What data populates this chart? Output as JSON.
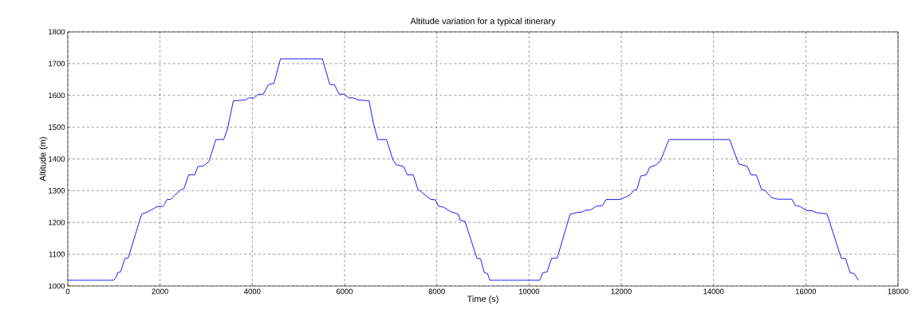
{
  "chart_data": {
    "type": "line",
    "title": "Altitude variation for a typical itinerary",
    "xlabel": "Time (s)",
    "ylabel": "Altitude (m)",
    "xlim": [
      0,
      18000
    ],
    "ylim": [
      1000,
      1800
    ],
    "xticks": [
      0,
      2000,
      4000,
      6000,
      8000,
      10000,
      12000,
      14000,
      16000,
      18000
    ],
    "yticks": [
      1000,
      1100,
      1200,
      1300,
      1400,
      1500,
      1600,
      1700,
      1800
    ],
    "grid": true,
    "marker": "none",
    "line_style": "solid",
    "series": [
      {
        "color": "#0000ff",
        "x": [
          0,
          990,
          1050,
          1080,
          1140,
          1240,
          1310,
          1600,
          1730,
          1940,
          2050,
          2100,
          2150,
          2230,
          2330,
          2440,
          2520,
          2620,
          2750,
          2820,
          2940,
          3060,
          3210,
          3380,
          3460,
          3590,
          3720,
          3860,
          3920,
          4040,
          4120,
          4240,
          4350,
          4470,
          4610,
          5520,
          5680,
          5780,
          5880,
          5990,
          6090,
          6200,
          6280,
          6530,
          6630,
          6720,
          6910,
          7050,
          7120,
          7280,
          7360,
          7490,
          7590,
          7670,
          7860,
          7970,
          8040,
          8150,
          8300,
          8470,
          8510,
          8610,
          8870,
          8950,
          9030,
          9100,
          9150,
          10230,
          10300,
          10390,
          10490,
          10610,
          10890,
          11040,
          11150,
          11240,
          11330,
          11460,
          11590,
          11670,
          11960,
          12080,
          12190,
          12280,
          12340,
          12420,
          12540,
          12620,
          12740,
          12850,
          13030,
          14350,
          14470,
          14550,
          14730,
          14810,
          14930,
          15040,
          15120,
          15250,
          15390,
          15700,
          15770,
          15880,
          16020,
          16140,
          16230,
          16460,
          16770,
          16860,
          16960,
          17050,
          17140
        ],
        "values": [
          1018,
          1018,
          1027,
          1042,
          1044,
          1087,
          1088,
          1226,
          1233,
          1250,
          1250,
          1258,
          1272,
          1272,
          1287,
          1302,
          1307,
          1350,
          1350,
          1376,
          1378,
          1392,
          1461,
          1461,
          1493,
          1583,
          1584,
          1586,
          1592,
          1592,
          1603,
          1604,
          1634,
          1638,
          1715,
          1715,
          1634,
          1634,
          1604,
          1604,
          1592,
          1592,
          1586,
          1583,
          1510,
          1461,
          1461,
          1397,
          1382,
          1376,
          1350,
          1350,
          1304,
          1296,
          1273,
          1271,
          1251,
          1248,
          1234,
          1226,
          1206,
          1204,
          1087,
          1085,
          1042,
          1039,
          1018,
          1018,
          1042,
          1044,
          1087,
          1088,
          1226,
          1231,
          1233,
          1239,
          1239,
          1251,
          1253,
          1272,
          1272,
          1279,
          1287,
          1302,
          1304,
          1346,
          1350,
          1374,
          1380,
          1394,
          1461,
          1461,
          1413,
          1384,
          1377,
          1350,
          1349,
          1304,
          1300,
          1279,
          1273,
          1273,
          1254,
          1250,
          1237,
          1237,
          1231,
          1227,
          1087,
          1087,
          1042,
          1039,
          1018
        ]
      }
    ]
  }
}
